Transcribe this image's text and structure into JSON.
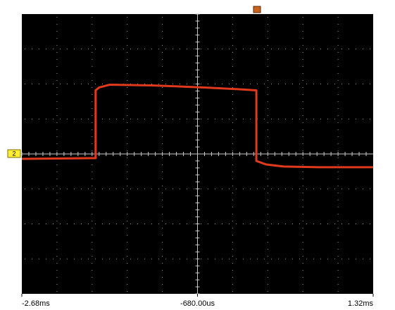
{
  "chart_data": {
    "type": "line",
    "channel_label": "2",
    "x": [
      -2.68,
      -1.84,
      -1.84,
      -1.8,
      -1.68,
      -1.2,
      -0.6,
      -0.2,
      -0.01,
      -0.01,
      0.1,
      0.3,
      0.7,
      1.32
    ],
    "series": [
      {
        "color": "#e03a1e",
        "values": [
          -0.14,
          -0.12,
          1.82,
          1.9,
          1.98,
          1.96,
          1.9,
          1.85,
          1.82,
          -0.2,
          -0.3,
          -0.36,
          -0.38,
          -0.38
        ]
      }
    ],
    "xlim": [
      -2.68,
      1.32
    ],
    "ylim": [
      -4,
      4
    ],
    "xticks": [
      {
        "value": -2.68,
        "label": "-2.68ms"
      },
      {
        "value": -0.68,
        "label": "-680.00us"
      },
      {
        "value": 1.32,
        "label": "1.32ms"
      }
    ],
    "grid": true
  }
}
